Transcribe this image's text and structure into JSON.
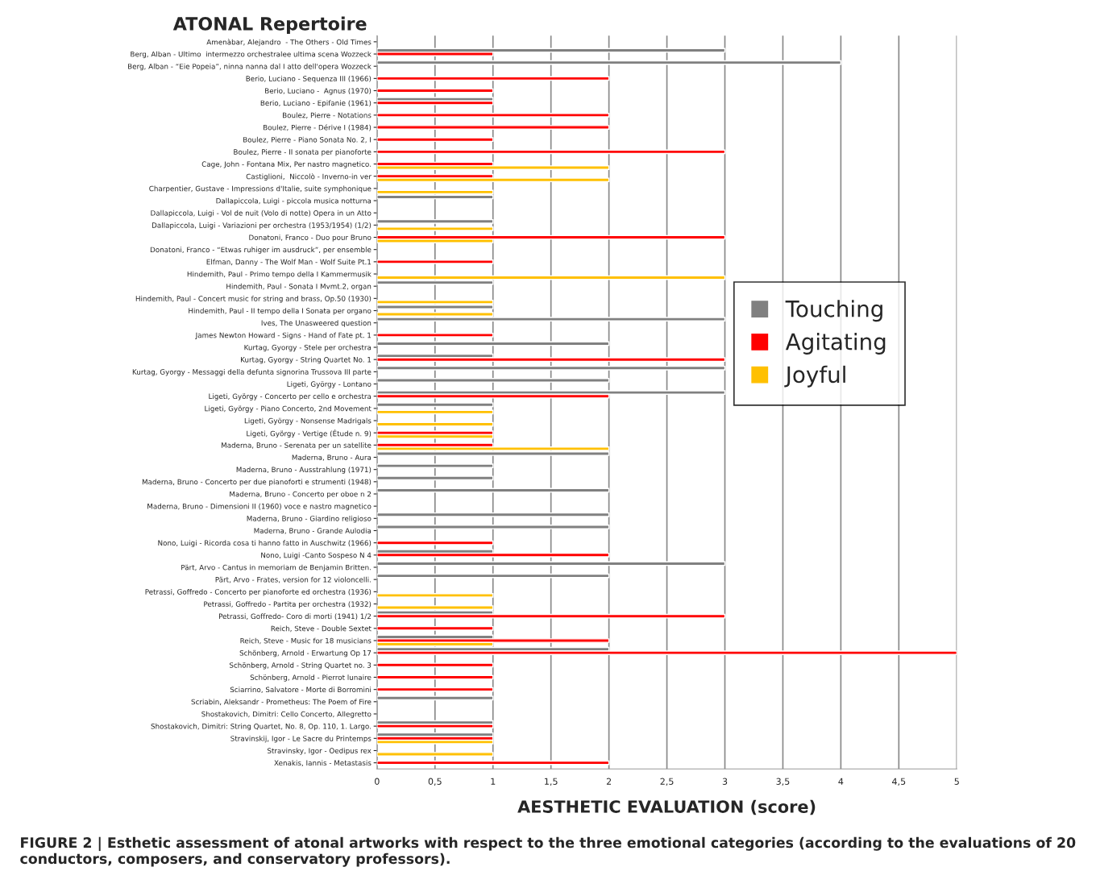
{
  "chart_data": {
    "type": "bar",
    "orientation": "horizontal",
    "title": "ATONAL Repertoire",
    "xlabel": "AESTHETIC EVALUATION (score)",
    "categories": [
      "Amenàbar, Alejandro  - The Others - Old Times",
      "Berg, Alban - Ultimo  intermezzo orchestralee ultima scena Wozzeck",
      "Berg, Alban - “Eie Popeia”, ninna nanna dal I atto dell'opera Wozzeck",
      "Berio, Luciano - Sequenza III (1966)",
      "Berio, Luciano -  Agnus (1970)",
      "Berio, Luciano - Epifanie (1961)",
      "Boulez, Pierre - Notations",
      "Boulez, Pierre - Dérive I (1984)",
      "Boulez, Pierre - Piano Sonata No. 2, I",
      "Boulez, Pierre - II sonata per pianoforte",
      "Cage, John - Fontana Mix, Per nastro magnetico.",
      "Castiglioni,  Niccolò - Inverno-in ver",
      "Charpentier, Gustave - Impressions d'Italie, suite symphonique",
      "Dallapiccola, Luigi - piccola musica notturna",
      "Dallapiccola, Luigi - Vol de nuit (Volo di notte) Opera in un Atto",
      "Dallapiccola, Luigi - Variazioni per orchestra (1953/1954) (1/2)",
      "Donatoni, Franco - Duo pour Bruno",
      "Donatoni, Franco - “Etwas ruhiger im ausdruck”, per ensemble",
      "Elfman, Danny - The Wolf Man - Wolf Suite Pt.1",
      "Hindemith, Paul - Primo tempo della I Kammermusik",
      "Hindemith, Paul - Sonata I Mvmt.2, organ",
      "Hindemith, Paul - Concert music for string and brass, Op.50 (1930)",
      "Hindemith, Paul - II tempo della I Sonata per organo",
      "Ives, The Unasweered question",
      "James Newton Howard - Signs - Hand of Fate pt. 1",
      "Kurtag, Gyorgy - Stele per orchestra",
      "Kurtag, Gyorgy - String Quartet No. 1",
      "Kurtag, Gyorgy - Messaggi della defunta signorina Trussova III parte",
      "Ligeti, György - Lontano",
      "Ligeti, György - Concerto per cello e orchestra",
      "Ligeti, György - Piano Concerto, 2nd Movement",
      "Ligeti, György - Nonsense Madrigals",
      "Ligeti, György - Vertige (Étude n. 9)",
      "Maderna, Bruno - Serenata per un satellite",
      "Maderna, Bruno - Aura",
      "Maderna, Bruno - Ausstrahlung (1971)",
      "Maderna, Bruno - Concerto per due pianoforti e strumenti (1948)",
      "Maderna, Bruno - Concerto per oboe n 2",
      "Maderna, Bruno - Dimensioni II (1960) voce e nastro magnetico",
      "Maderna, Bruno - Giardino religioso",
      "Maderna, Bruno - Grande Aulodia",
      "Nono, Luigi - Ricorda cosa ti hanno fatto in Auschwitz (1966)",
      "Nono, Luigi -Canto Sospeso N 4",
      "Pärt, Arvo - Cantus in memoriam de Benjamin Britten.",
      "Pärt, Arvo - Frates, version for 12 violoncelli.",
      "Petrassi, Goffredo - Concerto per pianoforte ed orchestra (1936)",
      "Petrassi, Goffredo - Partita per orchestra (1932)",
      "Petrassi, Goffredo- Coro di morti (1941) 1/2",
      "Reich, Steve - Double Sextet",
      "Reich, Steve - Music for 18 musicians",
      "Schönberg, Arnold - Erwartung Op 17",
      "Schönberg, Arnold - String Quartet no. 3",
      "Schönberg, Arnold - Pierrot lunaire",
      "Sciarrino, Salvatore - Morte di Borromini",
      "Scriabin, Aleksandr - Prometheus: The Poem of Fire",
      "Shostakovich, Dimitri: Cello Concerto, Allegretto",
      "Shostakovich, Dimitri: String Quartet, No. 8, Op. 110, 1. Largo.",
      "Stravinskij, Igor - Le Sacre du Printemps",
      "Stravinsky, Igor - Oedipus rex",
      "Xenakis, Iannis - Metastasis"
    ],
    "series": [
      {
        "name": "Touching",
        "color": "#808080",
        "values": [
          null,
          3,
          4,
          null,
          null,
          1,
          null,
          null,
          null,
          null,
          null,
          null,
          null,
          1,
          null,
          1,
          null,
          null,
          null,
          null,
          1,
          null,
          1,
          3,
          null,
          2,
          1,
          3,
          2,
          3,
          1,
          null,
          null,
          null,
          2,
          1,
          1,
          2,
          null,
          2,
          2,
          null,
          1,
          3,
          2,
          null,
          null,
          1,
          null,
          1,
          2,
          null,
          null,
          null,
          1,
          null,
          1,
          1,
          null,
          null
        ]
      },
      {
        "name": "Agitating",
        "color": "#ff0000",
        "values": [
          null,
          1,
          null,
          2,
          1,
          1,
          2,
          2,
          1,
          3,
          1,
          1,
          null,
          null,
          null,
          null,
          3,
          null,
          1,
          null,
          null,
          null,
          null,
          null,
          1,
          null,
          3,
          null,
          null,
          2,
          null,
          null,
          1,
          1,
          null,
          null,
          null,
          null,
          null,
          null,
          null,
          1,
          2,
          null,
          null,
          null,
          null,
          3,
          1,
          2,
          5,
          1,
          1,
          1,
          null,
          null,
          1,
          1,
          null,
          2
        ]
      },
      {
        "name": "Joyful",
        "color": "#ffc000",
        "values": [
          null,
          null,
          null,
          null,
          null,
          null,
          null,
          null,
          null,
          null,
          2,
          2,
          1,
          null,
          null,
          1,
          1,
          null,
          null,
          3,
          null,
          1,
          1,
          null,
          null,
          null,
          null,
          null,
          null,
          null,
          1,
          1,
          1,
          2,
          null,
          null,
          null,
          null,
          null,
          null,
          null,
          null,
          null,
          null,
          null,
          1,
          1,
          null,
          null,
          1,
          null,
          null,
          null,
          null,
          null,
          null,
          null,
          1,
          1,
          null
        ]
      }
    ],
    "xlim": [
      0,
      5
    ],
    "xticks": [
      0,
      {
        "value": 0.5,
        "label": "0,5"
      },
      1,
      {
        "value": 1.5,
        "label": "1,5"
      },
      2,
      {
        "value": 2.5,
        "label": "2,5"
      },
      3,
      {
        "value": 3.5,
        "label": "3,5"
      },
      4,
      {
        "value": 4.5,
        "label": "4,5"
      },
      5
    ],
    "grid": "x",
    "legend": "right",
    "annotations": [
      "FIGURE 2 | Esthetic assessment of atonal artworks with respect to the three emotional categories (according to the evaluations of 20 conductors, composers, and conservatory professors)."
    ]
  }
}
